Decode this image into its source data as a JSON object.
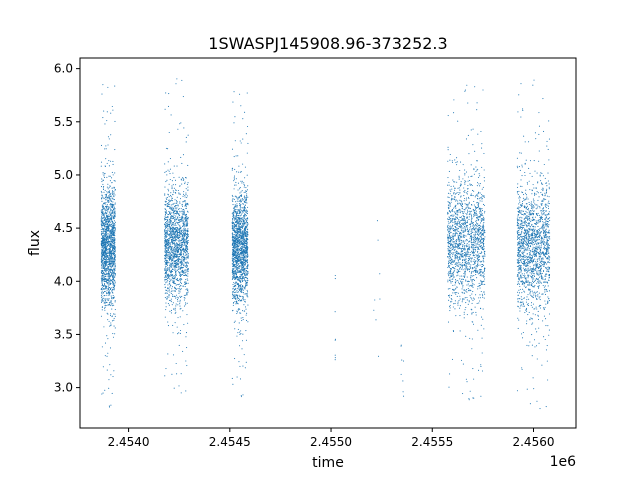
{
  "chart_data": {
    "type": "scatter",
    "title": "1SWASPJ145908.96-373252.3",
    "xlabel": "time",
    "ylabel": "flux",
    "x_offset_label": "1e6",
    "xlim": [
      2453760,
      2456210
    ],
    "ylim": [
      2.62,
      6.1
    ],
    "x_ticks": [
      2.454,
      2.4545,
      2.455,
      2.4555,
      2.456
    ],
    "x_tick_labels": [
      "2.4540",
      "2.4545",
      "2.4550",
      "2.4555",
      "2.4560"
    ],
    "y_ticks": [
      3.0,
      3.5,
      4.0,
      4.5,
      5.0,
      5.5,
      6.0
    ],
    "y_tick_labels": [
      "3.0",
      "3.5",
      "4.0",
      "4.5",
      "5.0",
      "5.5",
      "6.0"
    ],
    "marker_color": "#1f77b4",
    "grid": false,
    "legend": "none",
    "series": [
      {
        "segments": [
          {
            "x_start": 2453865,
            "x_end": 2453935,
            "center": 4.32,
            "spread": 0.28,
            "min": 2.78,
            "max": 5.92,
            "density": "high"
          },
          {
            "x_start": 2454178,
            "x_end": 2454295,
            "center": 4.35,
            "spread": 0.27,
            "min": 2.9,
            "max": 5.94,
            "density": "high"
          },
          {
            "x_start": 2454512,
            "x_end": 2454590,
            "center": 4.32,
            "spread": 0.26,
            "min": 2.88,
            "max": 5.85,
            "density": "high"
          },
          {
            "x_start": 2455020,
            "x_end": 2455022,
            "center": 3.9,
            "spread": 0.45,
            "min": 2.8,
            "max": 4.4,
            "density": "low"
          },
          {
            "x_start": 2455210,
            "x_end": 2455250,
            "center": 4.0,
            "spread": 0.5,
            "min": 3.1,
            "max": 5.0,
            "density": "low"
          },
          {
            "x_start": 2455345,
            "x_end": 2455360,
            "center": 3.2,
            "spread": 0.2,
            "min": 2.9,
            "max": 3.5,
            "density": "low"
          },
          {
            "x_start": 2455575,
            "x_end": 2455760,
            "center": 4.38,
            "spread": 0.3,
            "min": 2.85,
            "max": 5.88,
            "density": "high"
          },
          {
            "x_start": 2455920,
            "x_end": 2456080,
            "center": 4.32,
            "spread": 0.3,
            "min": 2.75,
            "max": 5.93,
            "density": "high"
          }
        ]
      }
    ]
  }
}
